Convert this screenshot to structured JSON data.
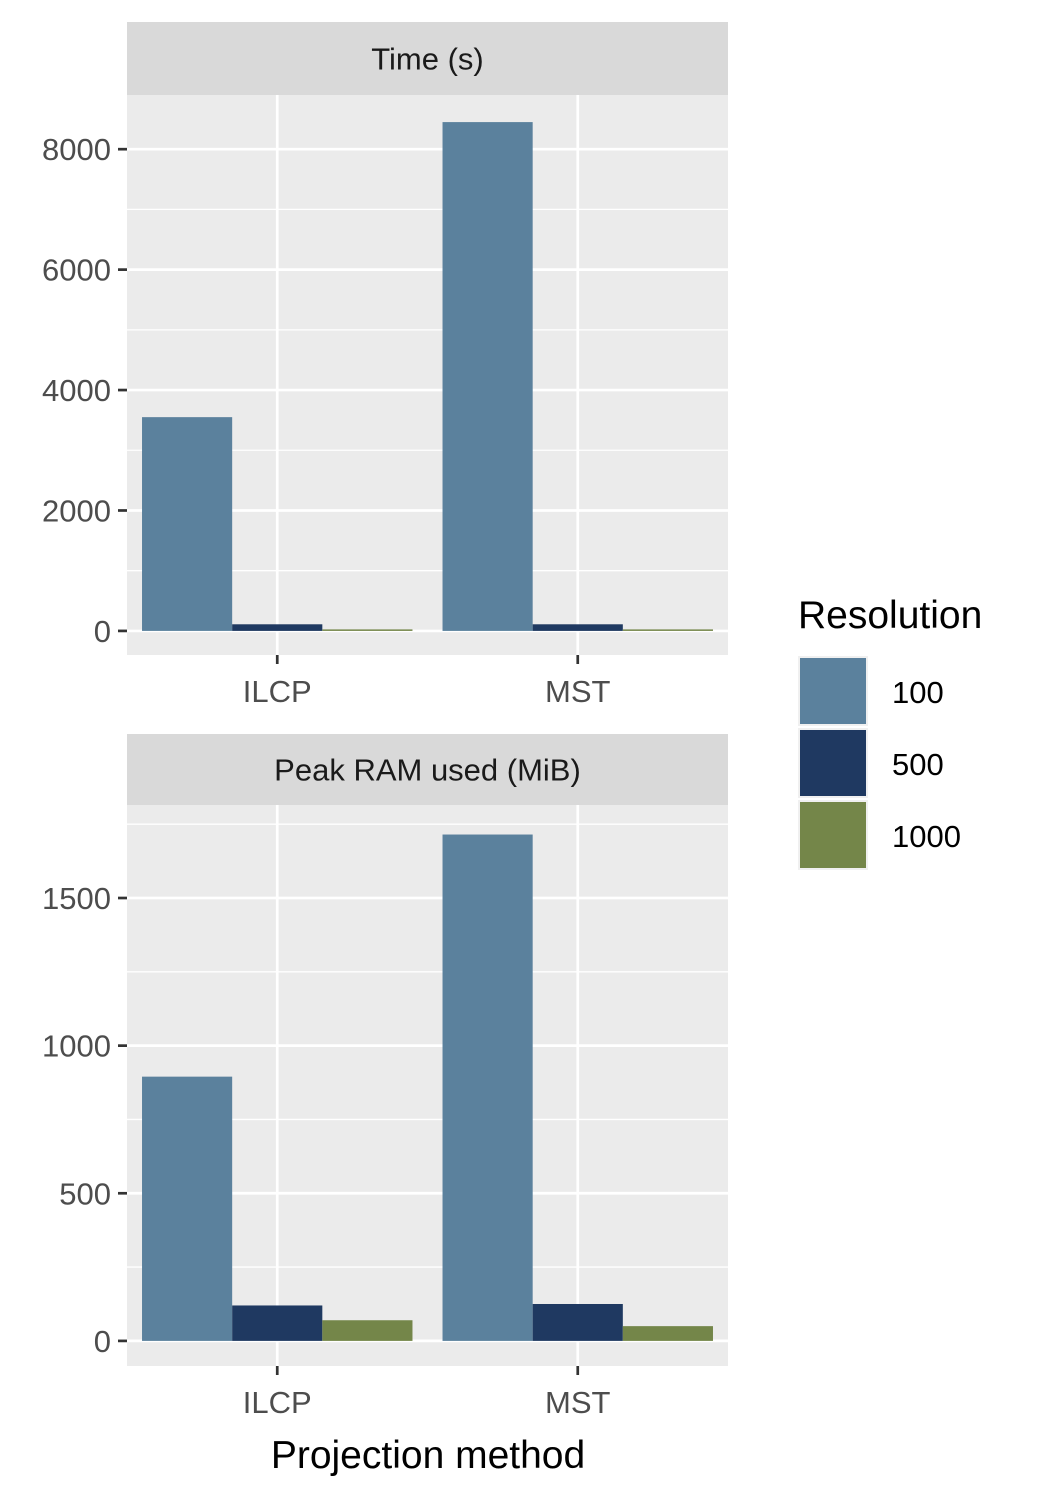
{
  "chart_data": {
    "type": "bar",
    "xlabel": "Projection method",
    "categories": [
      "ILCP",
      "MST"
    ],
    "legend": {
      "title": "Resolution",
      "position": "right",
      "entries": [
        {
          "label": "100",
          "color": "#5b819d"
        },
        {
          "label": "500",
          "color": "#1f3961"
        },
        {
          "label": "1000",
          "color": "#748649"
        }
      ]
    },
    "grid": true,
    "panels": [
      {
        "title": "Time (s)",
        "ylim": [
          -400,
          8900
        ],
        "yticks": [
          0,
          2000,
          4000,
          6000,
          8000
        ],
        "series": [
          {
            "name": "100",
            "values": [
              3550,
              8450
            ]
          },
          {
            "name": "500",
            "values": [
              110,
              110
            ]
          },
          {
            "name": "1000",
            "values": [
              25,
              25
            ]
          }
        ]
      },
      {
        "title": "Peak RAM used (MiB)",
        "ylim": [
          -85,
          1815
        ],
        "yticks": [
          0,
          500,
          1000,
          1500
        ],
        "series": [
          {
            "name": "100",
            "values": [
              895,
              1715
            ]
          },
          {
            "name": "500",
            "values": [
              120,
              125
            ]
          },
          {
            "name": "1000",
            "values": [
              70,
              50
            ]
          }
        ]
      }
    ]
  }
}
